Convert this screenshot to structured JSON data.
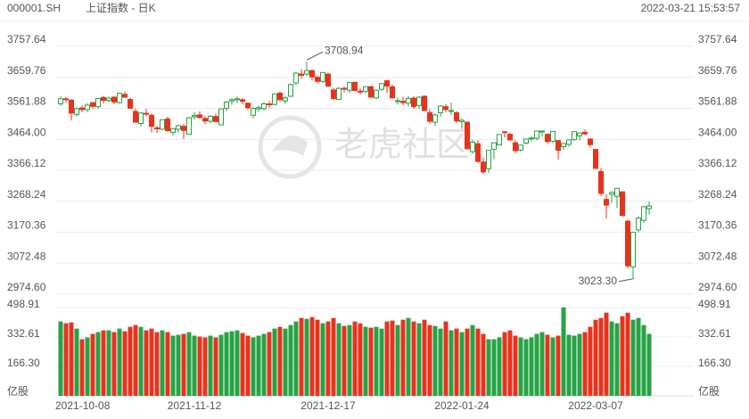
{
  "chart_data": {
    "type": "candlestick",
    "symbol": "000001.SH",
    "title": "上证指数 - 日K",
    "timestamp": "2022-03-21 15:53:57",
    "watermark": "老虎社区",
    "volume_unit": "亿股",
    "up_color": "#27a344",
    "down_color": "#e8331c",
    "grid": true,
    "categories": [
      "2021-10-08",
      null,
      null,
      null,
      null,
      null,
      null,
      null,
      null,
      null,
      null,
      null,
      null,
      null,
      null,
      null,
      null,
      null,
      null,
      null,
      null,
      null,
      null,
      null,
      null,
      "2021-11-12",
      null,
      null,
      null,
      null,
      null,
      null,
      null,
      null,
      null,
      null,
      null,
      null,
      null,
      null,
      null,
      null,
      null,
      null,
      null,
      null,
      null,
      null,
      null,
      null,
      "2021-12-17",
      null,
      null,
      null,
      null,
      null,
      null,
      null,
      null,
      null,
      null,
      null,
      null,
      null,
      null,
      null,
      null,
      null,
      null,
      null,
      null,
      null,
      null,
      null,
      null,
      "2022-01-24",
      null,
      null,
      null,
      null,
      null,
      null,
      null,
      null,
      null,
      null,
      null,
      null,
      null,
      null,
      null,
      null,
      null,
      null,
      null,
      null,
      null,
      null,
      null,
      null,
      "2022-03-07",
      null,
      null,
      null,
      null,
      null,
      null,
      null,
      null,
      null,
      null
    ],
    "open": [
      3576,
      3592,
      3588,
      3543,
      3563,
      3558,
      3580,
      3567,
      3596,
      3587,
      3597,
      3580,
      3606,
      3590,
      3552,
      3514,
      3546,
      3540,
      3500,
      3496,
      3528,
      3486,
      3496,
      3505,
      3480,
      3535,
      3541,
      3530,
      3521,
      3536,
      3510,
      3562,
      3585,
      3590,
      3589,
      3578,
      3540,
      3560,
      3561,
      3576,
      3574,
      3610,
      3585,
      3600,
      3642,
      3670,
      3670,
      3681,
      3660,
      3647,
      3670,
      3620,
      3590,
      3625,
      3619,
      3644,
      3616,
      3615,
      3630,
      3595,
      3622,
      3649,
      3630,
      3585,
      3584,
      3578,
      3594,
      3571,
      3600,
      3548,
      3518,
      3548,
      3567,
      3552,
      3548,
      3520,
      3518,
      3425,
      3450,
      3392,
      3371,
      3432,
      3446,
      3488,
      3480,
      3453,
      3430,
      3452,
      3467,
      3467,
      3490,
      3480,
      3458,
      3460,
      3441,
      3448,
      3463,
      3475,
      3486,
      3465,
      3432,
      3362,
      3274,
      3290,
      3284,
      3298,
      3205,
      3061,
      3178,
      3208,
      3245
    ],
    "high": [
      3600,
      3597,
      3590,
      3565,
      3571,
      3578,
      3581,
      3595,
      3600,
      3599,
      3601,
      3612,
      3615,
      3595,
      3561,
      3549,
      3560,
      3545,
      3507,
      3527,
      3535,
      3500,
      3511,
      3512,
      3534,
      3550,
      3552,
      3537,
      3540,
      3545,
      3562,
      3585,
      3595,
      3599,
      3595,
      3580,
      3566,
      3570,
      3581,
      3585,
      3609,
      3614,
      3600,
      3640,
      3676,
      3686,
      3708.94,
      3685,
      3664,
      3677,
      3675,
      3627,
      3628,
      3632,
      3645,
      3646,
      3625,
      3632,
      3634,
      3622,
      3642,
      3652,
      3637,
      3596,
      3598,
      3600,
      3600,
      3600,
      3603,
      3559,
      3545,
      3572,
      3575,
      3580,
      3553,
      3530,
      3520,
      3463,
      3461,
      3406,
      3429,
      3453,
      3480,
      3490,
      3485,
      3462,
      3447,
      3465,
      3474,
      3491,
      3491,
      3482,
      3490,
      3460,
      3452,
      3463,
      3488,
      3484,
      3495,
      3466,
      3432,
      3373,
      3290,
      3300,
      3310,
      3300,
      3210,
      3170,
      3221,
      3253,
      3268
    ],
    "low": [
      3570,
      3580,
      3524,
      3536,
      3550,
      3550,
      3560,
      3560,
      3577,
      3580,
      3575,
      3577,
      3595,
      3561,
      3517,
      3505,
      3536,
      3486,
      3484,
      3493,
      3489,
      3476,
      3485,
      3465,
      3479,
      3526,
      3529,
      3512,
      3515,
      3520,
      3508,
      3553,
      3573,
      3579,
      3574,
      3556,
      3530,
      3550,
      3554,
      3563,
      3572,
      3583,
      3575,
      3598,
      3635,
      3655,
      3665,
      3650,
      3640,
      3642,
      3630,
      3587,
      3588,
      3612,
      3610,
      3615,
      3605,
      3610,
      3596,
      3590,
      3617,
      3610,
      3592,
      3573,
      3570,
      3568,
      3560,
      3560,
      3553,
      3515,
      3506,
      3535,
      3550,
      3541,
      3515,
      3497,
      3432,
      3418,
      3390,
      3355,
      3358,
      3401,
      3445,
      3470,
      3460,
      3420,
      3425,
      3448,
      3458,
      3461,
      3473,
      3449,
      3452,
      3400,
      3431,
      3440,
      3458,
      3460,
      3477,
      3438,
      3371,
      3285,
      3214,
      3265,
      3247,
      3221,
      3056,
      3023.3,
      3170,
      3199,
      3226
    ],
    "close": [
      3592,
      3591,
      3547,
      3561,
      3558,
      3572,
      3568,
      3593,
      3587,
      3594,
      3582,
      3609,
      3597,
      3562,
      3518,
      3547,
      3545,
      3505,
      3498,
      3526,
      3491,
      3498,
      3507,
      3492,
      3532,
      3539,
      3533,
      3522,
      3537,
      3520,
      3560,
      3582,
      3589,
      3592,
      3584,
      3564,
      3562,
      3564,
      3576,
      3573,
      3607,
      3589,
      3595,
      3637,
      3673,
      3666,
      3681,
      3661,
      3647,
      3675,
      3632,
      3593,
      3625,
      3622,
      3643,
      3618,
      3615,
      3630,
      3597,
      3619,
      3640,
      3632,
      3595,
      3586,
      3580,
      3593,
      3567,
      3597,
      3555,
      3521,
      3541,
      3569,
      3558,
      3555,
      3522,
      3524,
      3434,
      3455,
      3394,
      3361,
      3429,
      3453,
      3479,
      3485,
      3462,
      3428,
      3446,
      3465,
      3468,
      3490,
      3490,
      3457,
      3489,
      3429,
      3451,
      3462,
      3488,
      3484,
      3481,
      3447,
      3372,
      3293,
      3256,
      3296,
      3309,
      3223,
      3064,
      3170,
      3215,
      3251,
      3253
    ],
    "volume": [
      420,
      410,
      415,
      380,
      320,
      330,
      350,
      360,
      370,
      370,
      360,
      380,
      365,
      390,
      400,
      390,
      370,
      380,
      360,
      370,
      360,
      340,
      345,
      350,
      360,
      340,
      335,
      330,
      340,
      330,
      345,
      360,
      365,
      370,
      355,
      340,
      330,
      340,
      350,
      360,
      380,
      390,
      380,
      400,
      420,
      440,
      435,
      445,
      430,
      410,
      420,
      440,
      410,
      395,
      400,
      420,
      410,
      390,
      385,
      390,
      380,
      420,
      425,
      400,
      430,
      440,
      420,
      410,
      430,
      400,
      395,
      380,
      420,
      370,
      380,
      360,
      380,
      400,
      380,
      350,
      320,
      320,
      330,
      360,
      370,
      340,
      330,
      320,
      330,
      350,
      360,
      345,
      330,
      340,
      500,
      345,
      340,
      350,
      360,
      390,
      430,
      440,
      470,
      420,
      410,
      450,
      470,
      430,
      440,
      400,
      350
    ],
    "ylim": [
      2974.6,
      3757.64
    ],
    "yticks": [
      3757.64,
      3659.76,
      3561.88,
      {
        "value": 3464,
        "label": "3464.00"
      },
      3366.12,
      3268.24,
      3170.36,
      3072.48,
      {
        "value": 2974.6,
        "label": "2974.60"
      }
    ],
    "y2lim": [
      0,
      498.91
    ],
    "y2ticks": [
      498.91,
      332.61,
      {
        "value": 166.3,
        "label": "166.30"
      }
    ],
    "annotations": [
      {
        "value": 3708.94,
        "label": "3708.94"
      },
      {
        "value": 3023.3,
        "label": "3023.30"
      }
    ]
  }
}
